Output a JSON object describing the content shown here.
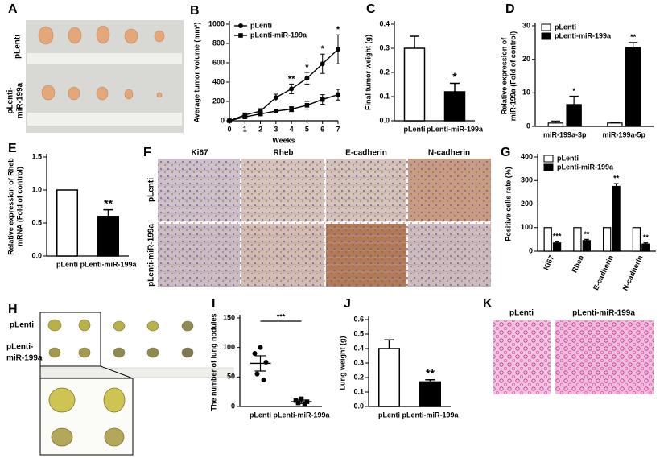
{
  "chart_data": [
    {
      "type": "line",
      "label": "B",
      "ylabel": "Average tumor volume (mm³)",
      "xlabel": "Weeks",
      "x": [
        0,
        1,
        2,
        3,
        4,
        5,
        6,
        7
      ],
      "xlim": [
        0,
        7
      ],
      "xticks": [
        0,
        1,
        2,
        3,
        4,
        5,
        6,
        7
      ],
      "ylim": [
        0,
        1000
      ],
      "yticks": [
        0,
        200,
        400,
        600,
        800,
        1000
      ],
      "legend": "upper left",
      "series": [
        {
          "name": "pLenti",
          "color": "#000000",
          "marker": "circle",
          "values": [
            0,
            60,
            100,
            240,
            330,
            440,
            590,
            740
          ],
          "errors": [
            0,
            20,
            25,
            35,
            50,
            60,
            100,
            150
          ]
        },
        {
          "name": "pLenti-miR-199a",
          "color": "#000000",
          "marker": "square",
          "values": [
            0,
            40,
            70,
            100,
            120,
            160,
            220,
            270
          ],
          "errors": [
            0,
            10,
            15,
            20,
            25,
            40,
            50,
            55
          ]
        }
      ],
      "significance": [
        null,
        null,
        null,
        null,
        "**",
        "*",
        "*",
        "*"
      ]
    },
    {
      "type": "bar",
      "label": "C",
      "ylabel": "Final tumor weight (g)",
      "categories": [
        "pLenti",
        "pLenti-miR-199a"
      ],
      "values": [
        0.3,
        0.12
      ],
      "errors": [
        0.05,
        0.035
      ],
      "colors": [
        "#ffffff",
        "#000000"
      ],
      "ylim": [
        0,
        0.4
      ],
      "yticks": [
        {
          "value": 0,
          "label": "0.0"
        },
        0.1,
        0.2,
        0.3,
        0.4
      ],
      "significance": [
        null,
        "*"
      ]
    },
    {
      "type": "grouped_bar",
      "label": "D",
      "ylabel": [
        "Relative expression of",
        "miR-199a (Fold of control)"
      ],
      "categories": [
        "miR-199a-3p",
        "miR-199a-5p"
      ],
      "ylim": [
        0,
        30
      ],
      "yticks": [
        0,
        10,
        20,
        30
      ],
      "legend": "upper left",
      "series": [
        {
          "name": "pLenti",
          "color": "#ffffff",
          "values": [
            1,
            1
          ],
          "errors": [
            0.6,
            0.1
          ]
        },
        {
          "name": "pLenti-miR-199a",
          "color": "#000000",
          "values": [
            6.5,
            23.5
          ],
          "errors": [
            2.5,
            1.5
          ],
          "significance": [
            "*",
            "**"
          ]
        }
      ]
    },
    {
      "type": "bar",
      "label": "E",
      "ylabel": [
        "Relative expression of Rheb",
        "mRNA (Fold of control)"
      ],
      "categories": [
        "pLenti",
        "pLenti-miR-199a"
      ],
      "values": [
        1,
        0.6
      ],
      "errors": [
        null,
        0.1
      ],
      "colors": [
        "#ffffff",
        "#000000"
      ],
      "ylim": [
        0,
        1.5
      ],
      "yticks": [
        {
          "value": 0,
          "label": "0.0"
        },
        0.5,
        {
          "value": 1,
          "label": "1.0"
        },
        1.5
      ],
      "significance": [
        null,
        "**"
      ]
    },
    {
      "type": "grouped_bar",
      "label": "G",
      "ylabel": "Positive cells rate (%)",
      "categories": [
        "Ki67",
        "Rheb",
        "E-cadherin",
        "N-cadherin"
      ],
      "ylim": [
        0,
        400
      ],
      "yticks": [
        0,
        100,
        200,
        300,
        400
      ],
      "legend": "upper left",
      "series": [
        {
          "name": "pLenti",
          "color": "#ffffff",
          "values": [
            100,
            100,
            100,
            100
          ],
          "errors": [
            null,
            null,
            null,
            null
          ]
        },
        {
          "name": "pLenti-miR-199a",
          "color": "#000000",
          "values": [
            35,
            45,
            275,
            30
          ],
          "errors": [
            5,
            5,
            12,
            5
          ],
          "significance": [
            "***",
            "**",
            "**",
            "**"
          ]
        }
      ]
    },
    {
      "type": "dot",
      "label": "I",
      "ylabel": "The number of lung nodules",
      "ylim": [
        0,
        150
      ],
      "yticks": [
        0,
        50,
        100,
        150
      ],
      "significance": "***",
      "groups": [
        {
          "name": "pLenti",
          "marker": "circle",
          "values": [
            100,
            90,
            75,
            55,
            45
          ],
          "mean": 73,
          "sem": 13
        },
        {
          "name": "pLenti-miR-199a",
          "marker": "square",
          "values": [
            13,
            10,
            8,
            6,
            3
          ],
          "mean": 8,
          "sem": 3
        }
      ]
    },
    {
      "type": "bar",
      "label": "J",
      "ylabel": "Lung weight (g)",
      "categories": [
        "pLenti",
        "pLenti-miR-199a"
      ],
      "values": [
        0.4,
        0.17
      ],
      "errors": [
        0.06,
        0.015
      ],
      "colors": [
        "#ffffff",
        "#000000"
      ],
      "ylim": [
        0,
        0.6
      ],
      "yticks": [
        {
          "value": 0,
          "label": "0.0"
        },
        0.1,
        0.2,
        0.3,
        0.4,
        0.5,
        0.6
      ],
      "significance": [
        null,
        "**"
      ]
    }
  ],
  "panels": {
    "A": {
      "label": "A",
      "rows": [
        [
          "pLenti"
        ],
        [
          "pLenti-",
          "miR-199a"
        ]
      ]
    },
    "F": {
      "label": "F",
      "columns": [
        "Ki67",
        "Rheb",
        "E-cadherin",
        "N-cadherin"
      ],
      "rows": [
        "pLenti",
        "pLenti-miR-199a"
      ]
    },
    "H": {
      "label": "H",
      "rows": [
        [
          "pLenti"
        ],
        [
          "pLenti-",
          "miR-199a"
        ]
      ]
    },
    "K": {
      "label": "K",
      "columns": [
        "pLenti",
        "pLenti-miR-199a"
      ]
    }
  }
}
